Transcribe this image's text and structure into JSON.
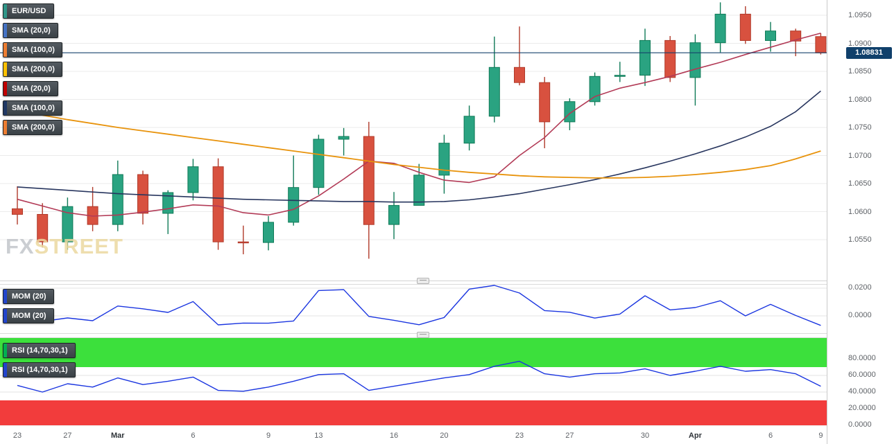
{
  "instrument": "EUR/USD",
  "colors": {
    "up_candle": "#2aa381",
    "up_border": "#0f7a57",
    "down_candle": "#d8513f",
    "down_border": "#b03a2a",
    "sma20": "#b23a56",
    "sma100": "#27355e",
    "sma200": "#e8930c",
    "indicator_line": "#1a35e0",
    "price_line": "#15416b",
    "grid": "#ebebeb",
    "badge_bg": "#10406b",
    "rsi_overbought_band": "#3ce03c",
    "rsi_oversold_band": "#f23c3c"
  },
  "main_panel": {
    "legend": [
      {
        "label": "EUR/USD",
        "chip": "#2e9688"
      },
      {
        "label": "SMA (20,0)",
        "chip": "#4472c4"
      },
      {
        "label": "SMA (100,0)",
        "chip": "#ed7d31"
      },
      {
        "label": "SMA (200,0)",
        "chip": "#ffc000"
      },
      {
        "label": "SMA (20,0)",
        "chip": "#c00000"
      },
      {
        "label": "SMA (100,0)",
        "chip": "#203864"
      },
      {
        "label": "SMA (200,0)",
        "chip": "#ed7d31"
      }
    ],
    "current_price_label": "1.08831",
    "watermark": {
      "fx": "FX",
      "street": "STREET"
    }
  },
  "mom_panel": {
    "legend": [
      {
        "label": "MOM (20)",
        "chip": "#2244cc"
      },
      {
        "label": "MOM (20)",
        "chip": "#2244cc"
      }
    ]
  },
  "rsi_panel": {
    "legend": [
      {
        "label": "RSI (14,70,30,1)",
        "chip": "#00b050"
      },
      {
        "label": "RSI (14,70,30,1)",
        "chip": "#2244cc"
      }
    ]
  },
  "chart_data": {
    "type": "candlestick",
    "title": "EUR/USD",
    "candles_format": "[open, high, low, close]",
    "candles": [
      [
        1.0605,
        1.0645,
        1.0577,
        1.0595
      ],
      [
        1.0595,
        1.0615,
        1.0536,
        1.0546
      ],
      [
        1.0546,
        1.0625,
        1.0532,
        1.0609
      ],
      [
        1.0609,
        1.0644,
        1.0565,
        1.0577
      ],
      [
        1.0577,
        1.0691,
        1.0565,
        1.0666
      ],
      [
        1.0666,
        1.0673,
        1.0577,
        1.0597
      ],
      [
        1.0597,
        1.0638,
        1.056,
        1.0634
      ],
      [
        1.0634,
        1.0694,
        1.062,
        1.068
      ],
      [
        1.068,
        1.0695,
        1.0532,
        1.0546
      ],
      [
        1.0546,
        1.0575,
        1.0524,
        1.0545
      ],
      [
        1.0545,
        1.0592,
        1.0531,
        1.0581
      ],
      [
        1.0581,
        1.07,
        1.0575,
        1.0643
      ],
      [
        1.0643,
        1.0737,
        1.063,
        1.0729
      ],
      [
        1.0729,
        1.0749,
        1.07,
        1.0734
      ],
      [
        1.0734,
        1.076,
        1.0516,
        1.0577
      ],
      [
        1.0577,
        1.0635,
        1.0551,
        1.0611
      ],
      [
        1.0611,
        1.0685,
        1.0611,
        1.0665
      ],
      [
        1.0665,
        1.0737,
        1.0632,
        1.0722
      ],
      [
        1.0722,
        1.0789,
        1.0709,
        1.077
      ],
      [
        1.077,
        1.0912,
        1.0759,
        1.0857
      ],
      [
        1.0857,
        1.093,
        1.0825,
        1.083
      ],
      [
        1.083,
        1.084,
        1.0713,
        1.076
      ],
      [
        1.076,
        1.0802,
        1.0745,
        1.0796
      ],
      [
        1.0796,
        1.0848,
        1.0789,
        1.0841
      ],
      [
        1.0841,
        1.0867,
        1.0831,
        1.0843
      ],
      [
        1.0843,
        1.0926,
        1.0824,
        1.0905
      ],
      [
        1.0905,
        1.0913,
        1.0831,
        1.0839
      ],
      [
        1.0839,
        1.0916,
        1.0789,
        1.0901
      ],
      [
        1.0901,
        1.0973,
        1.0884,
        1.0952
      ],
      [
        1.0952,
        1.0966,
        1.0899,
        1.0905
      ],
      [
        1.0905,
        1.0938,
        1.0885,
        1.0922
      ],
      [
        1.0922,
        1.0926,
        1.0877,
        1.0904
      ],
      [
        1.0912,
        1.0918,
        1.088,
        1.0883
      ]
    ],
    "series": [
      {
        "name": "SMA (20,0)",
        "color": "#b23a56",
        "width": 1.6,
        "values": [
          1.0622,
          1.061,
          1.0598,
          1.0592,
          1.0594,
          1.0599,
          1.0605,
          1.0612,
          1.061,
          1.0598,
          1.0594,
          1.0604,
          1.0628,
          1.0658,
          1.069,
          1.0686,
          1.067,
          1.0656,
          1.0652,
          1.0662,
          1.07,
          1.0732,
          1.0775,
          1.0805,
          1.082,
          1.083,
          1.0841,
          1.0854,
          1.0866,
          1.088,
          1.0893,
          1.0906,
          1.0918
        ]
      },
      {
        "name": "SMA (100,0)",
        "color": "#27355e",
        "width": 1.6,
        "values": [
          1.0644,
          1.0641,
          1.0638,
          1.0635,
          1.0632,
          1.063,
          1.0628,
          1.0626,
          1.0624,
          1.0622,
          1.0621,
          1.062,
          1.0619,
          1.0618,
          1.0618,
          1.0617,
          1.0617,
          1.0618,
          1.0621,
          1.0626,
          1.0632,
          1.064,
          1.0648,
          1.0657,
          1.0667,
          1.0678,
          1.069,
          1.0703,
          1.0717,
          1.0733,
          1.0752,
          1.0778,
          1.0815
        ]
      },
      {
        "name": "SMA (200,0)",
        "color": "#e8930c",
        "width": 1.8,
        "values": [
          1.078,
          1.0772,
          1.0764,
          1.0757,
          1.075,
          1.0744,
          1.0738,
          1.0732,
          1.0726,
          1.072,
          1.0714,
          1.0708,
          1.0702,
          1.0696,
          1.069,
          1.0684,
          1.0679,
          1.0674,
          1.067,
          1.0667,
          1.0664,
          1.0662,
          1.0661,
          1.066,
          1.066,
          1.0661,
          1.0663,
          1.0666,
          1.067,
          1.0675,
          1.0682,
          1.0694,
          1.0708
        ]
      }
    ],
    "momentum": [
      -0.001,
      -0.004,
      -0.0015,
      -0.0035,
      0.0071,
      0.0051,
      0.0025,
      0.0103,
      -0.0065,
      -0.0052,
      -0.0053,
      -0.0037,
      0.0183,
      0.0189,
      -0.0004,
      -0.0032,
      -0.0064,
      -0.0012,
      0.0193,
      0.022,
      0.0165,
      0.0038,
      0.0026,
      -0.0016,
      0.0013,
      0.0145,
      0.0043,
      0.006,
      0.0109,
      0.0,
      0.0083,
      0.0003,
      -0.0069
    ],
    "rsi": [
      48,
      40,
      50,
      46,
      57,
      49,
      53,
      58,
      42,
      41,
      46,
      53,
      61,
      62,
      42,
      47,
      52,
      57,
      61,
      71,
      77,
      62,
      58,
      62,
      63,
      68,
      60,
      65,
      71,
      65,
      67,
      62,
      47
    ],
    "current_price": 1.08831,
    "price_ticks": [
      1.095,
      1.09,
      1.085,
      1.08,
      1.075,
      1.07,
      1.065,
      1.06,
      1.055
    ],
    "mom_ticks": [
      0.02,
      0.0
    ],
    "rsi_ticks": [
      80,
      60,
      40,
      20,
      0
    ],
    "rsi_bands": {
      "overbought": 70,
      "oversold": 30
    },
    "x_labels": [
      {
        "label": "23",
        "idx": 0,
        "month": false
      },
      {
        "label": "27",
        "idx": 2,
        "month": false
      },
      {
        "label": "Mar",
        "idx": 4,
        "month": true
      },
      {
        "label": "6",
        "idx": 7,
        "month": false
      },
      {
        "label": "9",
        "idx": 10,
        "month": false
      },
      {
        "label": "13",
        "idx": 12,
        "month": false
      },
      {
        "label": "16",
        "idx": 15,
        "month": false
      },
      {
        "label": "20",
        "idx": 17,
        "month": false
      },
      {
        "label": "23",
        "idx": 20,
        "month": false
      },
      {
        "label": "27",
        "idx": 22,
        "month": false
      },
      {
        "label": "30",
        "idx": 25,
        "month": false
      },
      {
        "label": "Apr",
        "idx": 27,
        "month": true
      },
      {
        "label": "6",
        "idx": 30,
        "month": false
      },
      {
        "label": "9",
        "idx": 32,
        "month": false
      }
    ]
  }
}
